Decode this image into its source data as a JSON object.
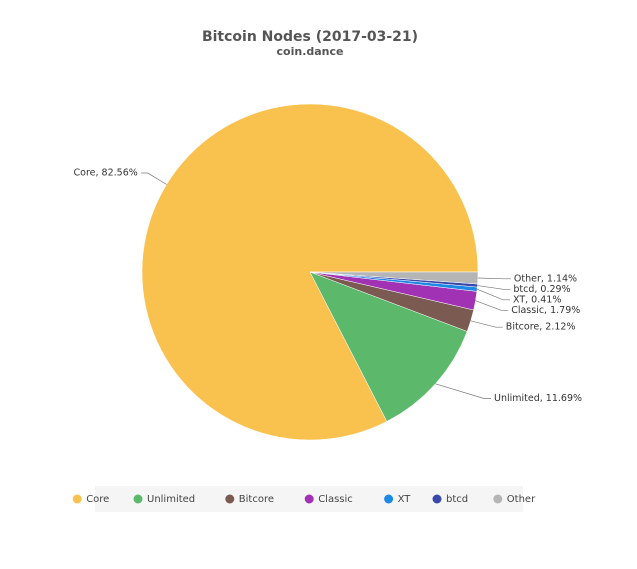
{
  "chart_data": {
    "type": "pie",
    "title": "Bitcoin Nodes (2017-03-21)",
    "subtitle": "coin.dance",
    "categories": [
      "Core",
      "Unlimited",
      "Bitcore",
      "Classic",
      "XT",
      "btcd",
      "Other"
    ],
    "values": [
      82.56,
      11.69,
      2.12,
      1.79,
      0.41,
      0.29,
      1.14
    ],
    "value_labels": [
      "Core, 82.56%",
      "Unlimited, 11.69%",
      "Bitcore, 2.12%",
      "Classic, 1.79%",
      "XT, 0.41%",
      "btcd, 0.29%",
      "Other, 1.14%"
    ],
    "colors": [
      "#f9c24f",
      "#5cb96b",
      "#7b5a51",
      "#a132b4",
      "#1e88e5",
      "#3949ab",
      "#b5b5b5"
    ]
  }
}
